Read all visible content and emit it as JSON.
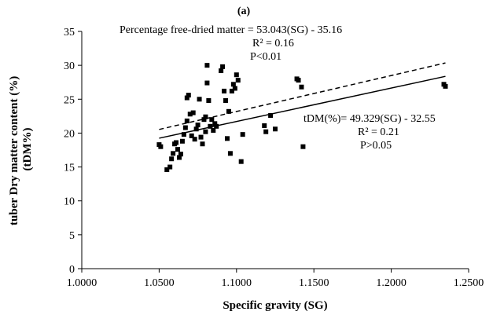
{
  "chart_data": {
    "type": "scatter",
    "panel_label": "(a)",
    "xlabel": "Specific gravity (SG)",
    "ylabel": "tuber Dry matter content (%) (tDM%)",
    "ylabel_lines": [
      "tuber Dry matter content (%)",
      "(tDM%)"
    ],
    "xlim": [
      1.0,
      1.25
    ],
    "ylim": [
      0,
      35
    ],
    "x_ticks": [
      "1.0000",
      "1.0500",
      "1.1000",
      "1.1500",
      "1.2000",
      "1.2500"
    ],
    "y_ticks": [
      "0",
      "5",
      "10",
      "15",
      "20",
      "25",
      "30",
      "35"
    ],
    "grid": false,
    "points": [
      [
        1.05,
        18.3
      ],
      [
        1.051,
        18.0
      ],
      [
        1.055,
        14.6
      ],
      [
        1.057,
        15.0
      ],
      [
        1.058,
        16.2
      ],
      [
        1.059,
        17.0
      ],
      [
        1.06,
        18.4
      ],
      [
        1.061,
        18.6
      ],
      [
        1.062,
        17.6
      ],
      [
        1.063,
        16.4
      ],
      [
        1.064,
        16.9
      ],
      [
        1.065,
        18.8
      ],
      [
        1.066,
        19.8
      ],
      [
        1.067,
        20.8
      ],
      [
        1.068,
        21.8
      ],
      [
        1.068,
        25.2
      ],
      [
        1.069,
        25.6
      ],
      [
        1.07,
        22.8
      ],
      [
        1.071,
        19.6
      ],
      [
        1.072,
        23.0
      ],
      [
        1.073,
        19.1
      ],
      [
        1.074,
        20.6
      ],
      [
        1.075,
        21.2
      ],
      [
        1.076,
        25.0
      ],
      [
        1.077,
        19.4
      ],
      [
        1.078,
        18.4
      ],
      [
        1.079,
        22.0
      ],
      [
        1.08,
        22.4
      ],
      [
        1.08,
        20.2
      ],
      [
        1.081,
        27.4
      ],
      [
        1.081,
        30.0
      ],
      [
        1.082,
        24.8
      ],
      [
        1.083,
        21.0
      ],
      [
        1.084,
        22.0
      ],
      [
        1.085,
        20.4
      ],
      [
        1.086,
        21.4
      ],
      [
        1.087,
        21.0
      ],
      [
        1.09,
        29.2
      ],
      [
        1.091,
        29.8
      ],
      [
        1.092,
        26.2
      ],
      [
        1.093,
        24.8
      ],
      [
        1.094,
        19.2
      ],
      [
        1.095,
        23.2
      ],
      [
        1.096,
        17.0
      ],
      [
        1.097,
        26.2
      ],
      [
        1.098,
        27.2
      ],
      [
        1.099,
        26.6
      ],
      [
        1.1,
        28.6
      ],
      [
        1.101,
        27.8
      ],
      [
        1.103,
        15.8
      ],
      [
        1.104,
        19.8
      ],
      [
        1.118,
        21.1
      ],
      [
        1.119,
        20.2
      ],
      [
        1.122,
        22.6
      ],
      [
        1.125,
        20.6
      ],
      [
        1.139,
        28.0
      ],
      [
        1.14,
        27.8
      ],
      [
        1.142,
        26.8
      ],
      [
        1.143,
        18.0
      ],
      [
        1.234,
        27.2
      ],
      [
        1.235,
        26.9
      ]
    ],
    "series": [
      {
        "name": "Percentage free-dried matter",
        "line_style": "dashed",
        "slope": 53.043,
        "intercept": -35.16,
        "equation": "Percentage free-dried matter = 53.043(SG) - 35.16",
        "r2": "R² = 0.16",
        "p": "P<0.01"
      },
      {
        "name": "tDM(%)",
        "line_style": "solid",
        "slope": 49.329,
        "intercept": -32.55,
        "equation": "tDM(%)= 49.329(SG) - 32.55",
        "r2": "R² = 0.21",
        "p": "P>0.05"
      }
    ]
  }
}
